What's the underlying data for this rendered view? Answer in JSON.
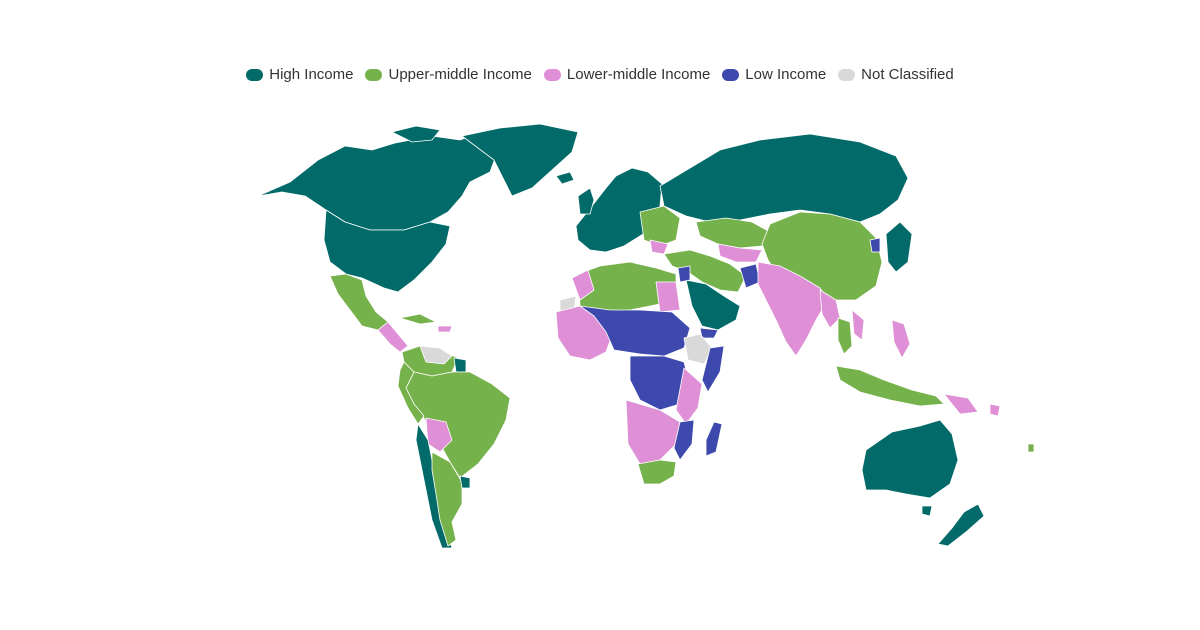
{
  "legend": {
    "items": [
      {
        "key": "high",
        "label": "High Income",
        "color": "#026b69"
      },
      {
        "key": "upper",
        "label": "Upper-middle Income",
        "color": "#76b24b"
      },
      {
        "key": "lower",
        "label": "Lower-middle Income",
        "color": "#de8fd6"
      },
      {
        "key": "low",
        "label": "Low Income",
        "color": "#3e49ad"
      },
      {
        "key": "nc",
        "label": "Not Classified",
        "color": "#d9d9d9"
      }
    ]
  }
}
